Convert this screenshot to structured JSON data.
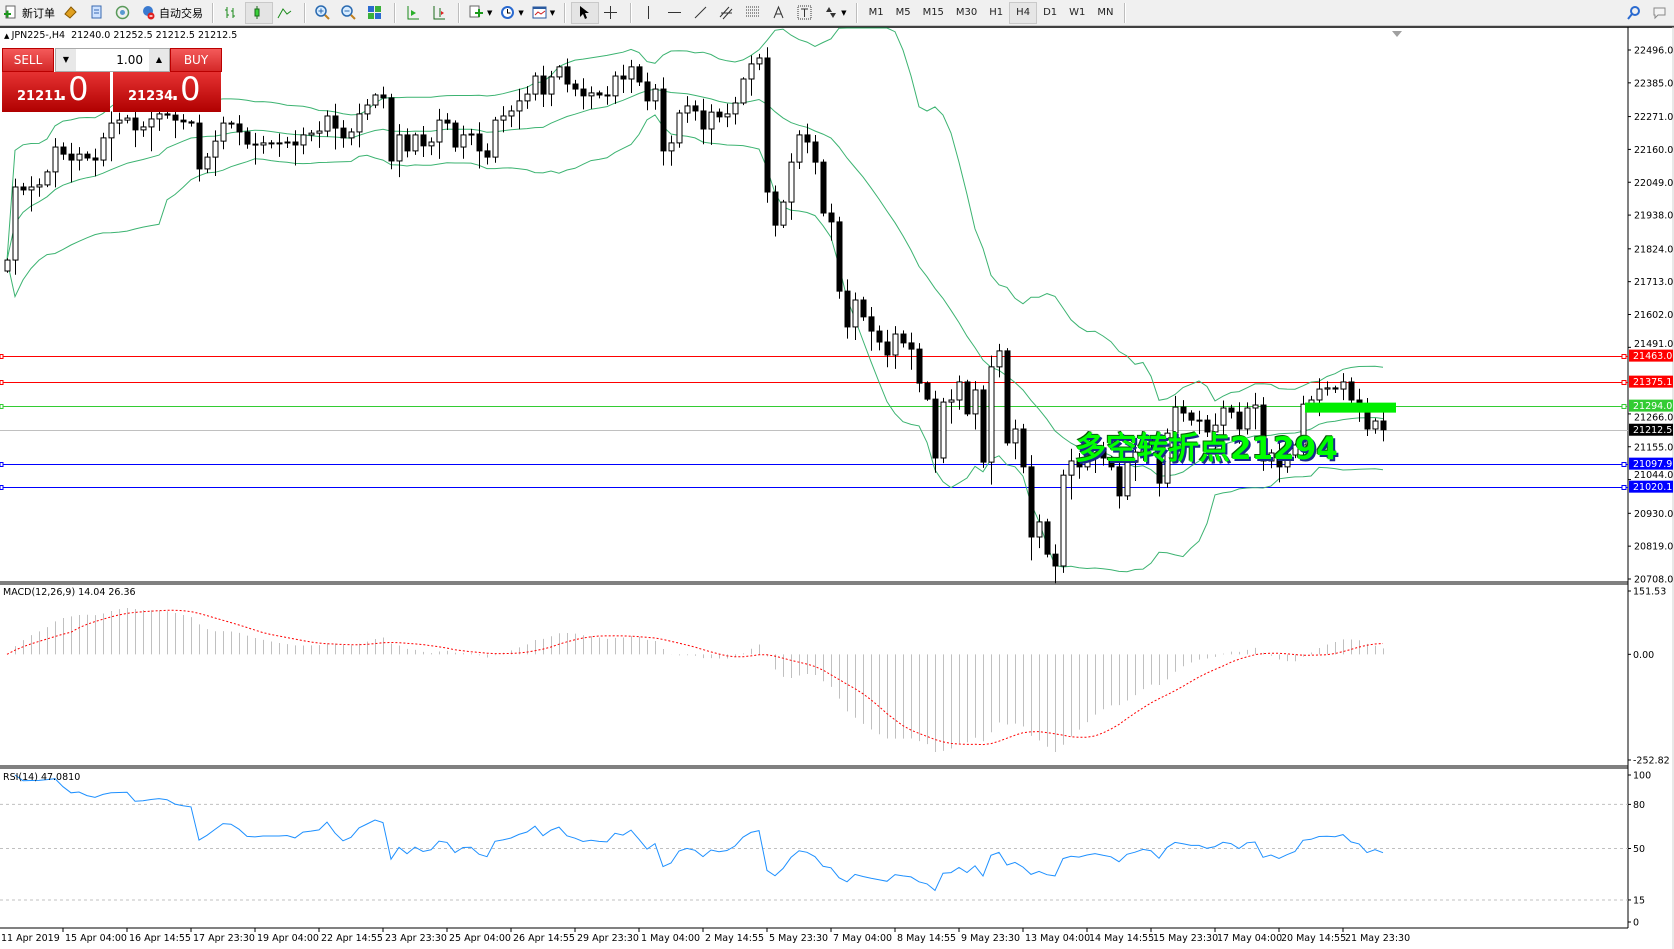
{
  "toolbar": {
    "new_order": "新订单",
    "auto_trading": "自动交易",
    "timeframes": [
      "M1",
      "M5",
      "M15",
      "M30",
      "H1",
      "H4",
      "D1",
      "W1",
      "MN"
    ],
    "active_timeframe": "H4",
    "icons": [
      "new-order-icon",
      "metaeditor-icon",
      "history-icon",
      "signals-icon",
      "auto-trading-icon",
      "bar-chart-icon",
      "candlestick-icon",
      "line-chart-icon",
      "zoom-in-icon",
      "zoom-out-icon",
      "tile-windows-icon",
      "autoscroll-icon",
      "chart-shift-icon",
      "indicators-icon",
      "periods-icon",
      "templates-icon",
      "cursor-icon",
      "crosshair-icon",
      "vertical-line-icon",
      "horizontal-line-icon",
      "trendline-icon",
      "channel-icon",
      "fibonacci-icon",
      "text-icon",
      "text-label-icon",
      "arrows-icon",
      "search-icon",
      "community-icon"
    ]
  },
  "chart_header": {
    "symbol": "JPN225-,H4",
    "ohlc": "21240.0 21252.5 21212.5 21212.5"
  },
  "one_click": {
    "sell_label": "SELL",
    "buy_label": "BUY",
    "volume": "1.00",
    "sell_price_main": "21211",
    "sell_price_frac": ".0",
    "buy_price_main": "21234",
    "buy_price_frac": ".0"
  },
  "annotation": {
    "text": "多空转折点21294",
    "color": "#00ff00"
  },
  "chart_data": [
    {
      "type": "candlestick",
      "symbol": "JPN225-",
      "timeframe": "H4",
      "first_open": 21749,
      "close": [
        21786,
        22033,
        22023,
        22033,
        22040,
        22084,
        22168,
        22144,
        22124,
        22144,
        22131,
        22124,
        22199,
        22249,
        22259,
        22266,
        22226,
        22236,
        22263,
        22280,
        22276,
        22259,
        22253,
        22249,
        22094,
        22134,
        22188,
        22249,
        22246,
        22219,
        22178,
        22175,
        22182,
        22182,
        22182,
        22185,
        22175,
        22209,
        22215,
        22222,
        22273,
        22232,
        22199,
        22219,
        22280,
        22310,
        22344,
        22334,
        22121,
        22209,
        22155,
        22209,
        22172,
        22185,
        22259,
        22249,
        22168,
        22209,
        22212,
        22155,
        22134,
        22259,
        22273,
        22290,
        22324,
        22347,
        22408,
        22347,
        22405,
        22439,
        22381,
        22364,
        22341,
        22351,
        22344,
        22341,
        22408,
        22398,
        22439,
        22388,
        22324,
        22364,
        22155,
        22182,
        22283,
        22307,
        22290,
        22229,
        22286,
        22270,
        22280,
        22317,
        22398,
        22449,
        22469,
        22016,
        21904,
        21982,
        22117,
        22209,
        22185,
        22117,
        21945,
        21915,
        21681,
        21560,
        21651,
        21594,
        21546,
        21509,
        21465,
        21536,
        21506,
        21485,
        21370,
        21316,
        21117,
        21306,
        21313,
        21374,
        21266,
        21347,
        21103,
        21425,
        21479,
        21168,
        21215,
        21087,
        20850,
        20901,
        20792,
        20752,
        21059,
        21107,
        21087,
        21127,
        21151,
        21117,
        21087,
        20989,
        21103,
        21137,
        21181,
        21161,
        21032,
        21201,
        21289,
        21269,
        21245,
        21245,
        21205,
        21228,
        21286,
        21272,
        21215,
        21286,
        21296,
        21107,
        21134,
        21087,
        21127,
        21161,
        21299,
        21313,
        21350,
        21354,
        21350,
        21374,
        21313,
        21296,
        21215,
        21242,
        21212.5
      ],
      "price_axis_ticks": [
        "22496.0",
        "22385.0",
        "22271.0",
        "22160.0",
        "22049.0",
        "21938.0",
        "21824.0",
        "21713.0",
        "21602.0",
        "21491.0",
        "21266.0",
        "21155.0",
        "21044.0",
        "20930.0",
        "20819.0",
        "20708.0"
      ],
      "ylim": [
        20708,
        22496
      ],
      "time_axis_labels": [
        "11 Apr 2019",
        "15 Apr 04:00",
        "16 Apr 14:55",
        "17 Apr 23:30",
        "19 Apr 04:00",
        "22 Apr 14:55",
        "23 Apr 23:30",
        "25 Apr 04:00",
        "26 Apr 14:55",
        "29 Apr 23:30",
        "1 May 04:00",
        "2 May 14:55",
        "5 May 23:30",
        "7 May 04:00",
        "8 May 14:55",
        "9 May 23:30",
        "13 May 04:00",
        "14 May 14:55",
        "15 May 23:30",
        "17 May 04:00",
        "20 May 14:55",
        "21 May 23:30"
      ],
      "overlays": [
        {
          "indicator": "Bollinger Bands",
          "period": 20,
          "deviation": 2,
          "color": "#3cb371"
        }
      ],
      "levels": [
        {
          "price": "21463.0",
          "color": "#ff0000"
        },
        {
          "price": "21375.1",
          "color": "#ff0000"
        },
        {
          "price": "21294.0",
          "color": "#33cc33"
        },
        {
          "price": "21212.5",
          "color": "#c0c0c0",
          "label_bg": "#000000",
          "kind": "bid"
        },
        {
          "price": "21097.9",
          "color": "#0000ff"
        },
        {
          "price": "21020.1",
          "color": "#0000ff"
        }
      ],
      "highlight_zone_price": 21294,
      "highlight_color": "#00ee00"
    },
    {
      "type": "bar",
      "indicator": "MACD",
      "label": "MACD(12,26,9) 14.04 26.36",
      "fast": 12,
      "slow": 26,
      "signal": 9,
      "ylim": [
        -252.82,
        151.53
      ],
      "ticks": [
        "151.53",
        "0.00",
        "-252.82"
      ],
      "histogram_color": "#c0c0c0",
      "signal_color": "#ff0000"
    },
    {
      "type": "line",
      "indicator": "RSI",
      "label": "RSI(14) 47.0810",
      "period": 14,
      "ylim": [
        0,
        100
      ],
      "ticks": [
        "100",
        "80",
        "50",
        "15",
        "0"
      ],
      "levels": [
        80,
        50,
        15
      ],
      "color": "#1e90ff"
    }
  ]
}
